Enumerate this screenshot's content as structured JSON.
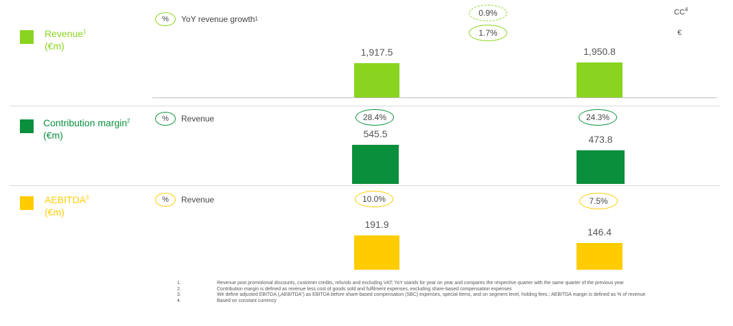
{
  "colors": {
    "revenue": "#8ad41f",
    "contribution": "#0a8f3c",
    "aebitda": "#ffcc00"
  },
  "legend": {
    "revenue": {
      "title": "Revenue",
      "sup": "1",
      "unit": "(€m)"
    },
    "contribution": {
      "title": "Contribution margin",
      "sup": "2",
      "unit": "(€m)"
    },
    "aebitda": {
      "title": "AEBITDA",
      "sup": "3",
      "unit": "(€m)"
    }
  },
  "pct_labels": {
    "symbol": "%",
    "revenue": "YoY revenue growth",
    "revenue_sup": "1",
    "contribution": "Revenue",
    "aebitda": "Revenue"
  },
  "growth_units": {
    "cc": "CC",
    "cc_sup": "4",
    "eur": "€"
  },
  "chart_data": {
    "type": "bar",
    "charts": [
      {
        "name": "Revenue",
        "values": [
          1917.5,
          1950.8
        ],
        "value_labels": [
          "1,917.5",
          "1,950.8"
        ],
        "growth": {
          "cc": "0.9%",
          "eur": "1.7%"
        }
      },
      {
        "name": "Contribution margin",
        "values": [
          545.5,
          473.8
        ],
        "value_labels": [
          "545.5",
          "473.8"
        ],
        "margins": [
          "28.4%",
          "24.3%"
        ]
      },
      {
        "name": "AEBITDA",
        "values": [
          191.9,
          146.4
        ],
        "value_labels": [
          "191.9",
          "146.4"
        ],
        "margins": [
          "10.0%",
          "7.5%"
        ]
      }
    ]
  },
  "footnotes": [
    {
      "n": "1.",
      "text": "Revenue post promotional discounts, customer credits, refunds and excluding VAT; YoY stands for year on year and compares the respective quarter with the same quarter of the previous year"
    },
    {
      "n": "2.",
      "text": "Contribution margin is defined as revenue less cost of goods sold and fulfilment expenses, excluding share-based compensation expenses"
    },
    {
      "n": "3.",
      "text": "We define adjusted EBITDA („AEBITDA“) as EBITDA before share-based compensation (SBC) expenses, special items, and on segment level, holding fees.; AEBITDA margin is defined as % of revenue"
    },
    {
      "n": "4.",
      "text": "Based on constant currency"
    }
  ]
}
